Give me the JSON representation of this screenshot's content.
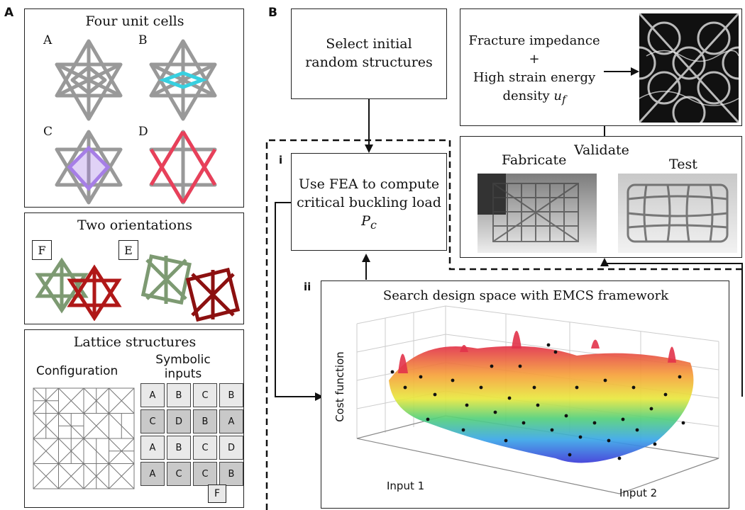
{
  "panel_a": {
    "letter": "A",
    "unit_cells": {
      "title": "Four unit cells",
      "labels": [
        "A",
        "B",
        "C",
        "D"
      ],
      "highlight_colors": {
        "A": "#9a9a9a",
        "B": "#38d0e0",
        "C": "#a67ee6",
        "D": "#e8405a"
      }
    },
    "orientations": {
      "title": "Two orientations",
      "label_f": "F",
      "label_e": "E",
      "colors": {
        "green": "#7d9a72",
        "red": "#b01818"
      }
    },
    "lattice": {
      "title": "Lattice structures",
      "configuration_label": "Configuration",
      "symbolic_label_line1": "Symbolic",
      "symbolic_label_line2": "inputs",
      "grid": [
        [
          "A",
          "B",
          "C",
          "B"
        ],
        [
          "C",
          "D",
          "B",
          "A"
        ],
        [
          "A",
          "B",
          "C",
          "D"
        ],
        [
          "A",
          "C",
          "C",
          "B"
        ]
      ],
      "orientation_tag": "F"
    }
  },
  "panel_b": {
    "letter": "B",
    "select_box": {
      "line1": "Select initial",
      "line2": "random structures"
    },
    "fracture_box": {
      "line1": "Fracture impedance",
      "line2": "+",
      "line3": "High strain energy",
      "line4": "density",
      "symbol": "u",
      "subscript": "f"
    },
    "validate_box": {
      "title": "Validate",
      "fabricate": "Fabricate",
      "test": "Test"
    },
    "fea_box": {
      "tag": "i",
      "line1": "Use FEA to compute",
      "line2": "critical buckling load",
      "symbol": "P",
      "subscript": "c"
    },
    "search_box": {
      "tag": "ii",
      "title": "Search design space with EMCS framework",
      "zlabel": "Cost function",
      "xlabel": "Input 1",
      "ylabel": "Input 2"
    }
  }
}
